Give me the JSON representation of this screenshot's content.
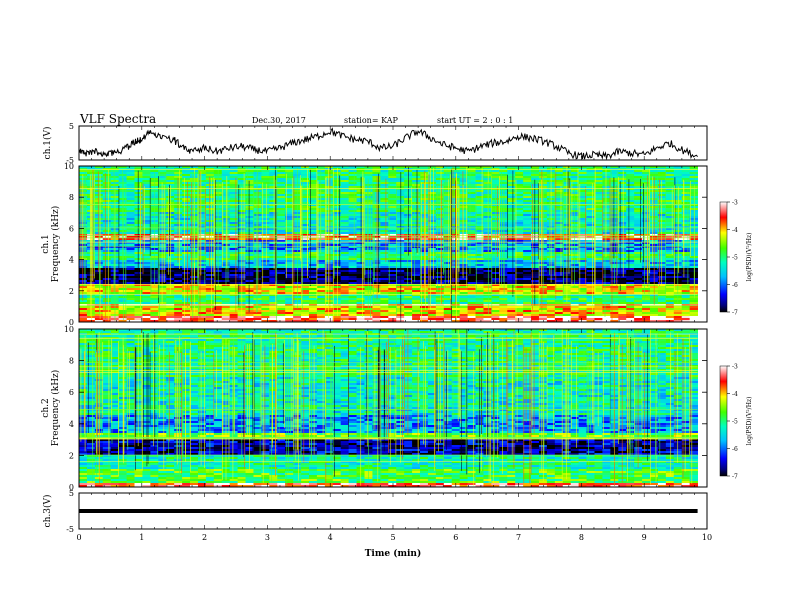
{
  "header": {
    "title": "VLF Spectra",
    "date": "Dec.30, 2017",
    "station": "station= KAP",
    "start_ut": "start  UT  =   2  : 0   : 1"
  },
  "chart_data": [
    {
      "type": "line",
      "panel": "ch1-waveform",
      "ylabel": "ch.1(V)",
      "ylim": [
        -5,
        5
      ],
      "yticks": [
        5,
        -5
      ],
      "xlim": [
        0,
        10
      ],
      "x_extent_min": 9.85,
      "series": [
        {
          "x": [
            0,
            0.1,
            0.25,
            0.4,
            0.55,
            0.75,
            0.9,
            1.0,
            1.15,
            1.3,
            1.5,
            1.65,
            1.8,
            2.0,
            2.2,
            2.4,
            2.6,
            2.8,
            3.0,
            3.2,
            3.4,
            3.6,
            3.8,
            4.0,
            4.2,
            4.4,
            4.6,
            4.8,
            5.0,
            5.2,
            5.4,
            5.6,
            5.8,
            6.0,
            6.2,
            6.4,
            6.6,
            6.8,
            7.0,
            7.2,
            7.4,
            7.6,
            7.8,
            8.0,
            8.2,
            8.4,
            8.6,
            8.8,
            9.0,
            9.2,
            9.4,
            9.6,
            9.85
          ],
          "values": [
            -2,
            -3.5,
            -2.5,
            -3.8,
            -3,
            -1.5,
            0.5,
            1,
            3.5,
            2,
            1,
            -1,
            -2.5,
            -1.5,
            -2.5,
            -1.5,
            -1,
            -2,
            -2.5,
            -1.5,
            0,
            1,
            2,
            3.5,
            2,
            1,
            0.5,
            -1.5,
            -1,
            1.5,
            3.5,
            1.5,
            -0.5,
            -1.5,
            -2.5,
            -1,
            0,
            0.5,
            2,
            1.5,
            0.5,
            -1,
            -3,
            -4,
            -3.5,
            -4,
            -2.5,
            -3,
            -3.5,
            -1.5,
            0,
            -2,
            -4
          ]
        }
      ]
    },
    {
      "type": "heatmap",
      "panel": "ch1-spectrogram",
      "ylabel": "ch.1",
      "ylabel2": "Frequency (kHz)",
      "xlim": [
        0,
        10
      ],
      "ylim": [
        0,
        10
      ],
      "yticks": [
        0,
        2,
        4,
        6,
        8,
        10
      ],
      "colorbar": {
        "label": "log(PSD)(V²/Hz)",
        "range": [
          -7,
          -3
        ],
        "ticks": [
          -3,
          -4,
          -5,
          -6,
          -7
        ]
      },
      "bands": [
        {
          "from": 0,
          "to": 0.4,
          "level": 0.92
        },
        {
          "from": 0.4,
          "to": 1.0,
          "level": 0.72
        },
        {
          "from": 1.0,
          "to": 1.2,
          "level": 0.95
        },
        {
          "from": 1.2,
          "to": 1.8,
          "level": 0.5
        },
        {
          "from": 1.8,
          "to": 2.5,
          "level": 0.7
        },
        {
          "from": 2.5,
          "to": 3.4,
          "level": 0.05
        },
        {
          "from": 3.4,
          "to": 4.0,
          "level": 0.35
        },
        {
          "from": 4.0,
          "to": 4.5,
          "level": 0.5
        },
        {
          "from": 4.5,
          "to": 5.2,
          "level": 0.3
        },
        {
          "from": 5.2,
          "to": 5.7,
          "level": 0.9
        },
        {
          "from": 5.7,
          "to": 7.0,
          "level": 0.42
        },
        {
          "from": 7.0,
          "to": 10,
          "level": 0.5
        }
      ]
    },
    {
      "type": "heatmap",
      "panel": "ch2-spectrogram",
      "ylabel": "ch.2",
      "ylabel2": "Frequency (kHz)",
      "xlim": [
        0,
        10
      ],
      "ylim": [
        0,
        10
      ],
      "yticks": [
        0,
        2,
        4,
        6,
        8,
        10
      ],
      "colorbar": {
        "label": "log(PSD)(V²/Hz)",
        "range": [
          -7,
          -3
        ],
        "ticks": [
          -3,
          -4,
          -5,
          -6,
          -7
        ]
      },
      "bands": [
        {
          "from": 0,
          "to": 0.3,
          "level": 0.9
        },
        {
          "from": 0.3,
          "to": 1.2,
          "level": 0.55
        },
        {
          "from": 1.2,
          "to": 2.0,
          "level": 0.45
        },
        {
          "from": 2.0,
          "to": 3.1,
          "level": 0.1
        },
        {
          "from": 3.1,
          "to": 3.4,
          "level": 0.6
        },
        {
          "from": 3.4,
          "to": 4.6,
          "level": 0.3
        },
        {
          "from": 4.6,
          "to": 7.0,
          "level": 0.42
        },
        {
          "from": 7.0,
          "to": 10,
          "level": 0.48
        }
      ]
    },
    {
      "type": "line",
      "panel": "ch3-waveform",
      "ylabel": "ch.3(V)",
      "ylim": [
        -5,
        5
      ],
      "yticks": [
        5,
        -5
      ],
      "xlim": [
        0,
        10
      ],
      "xlabel": "Time  (min)",
      "xticks": [
        0,
        1,
        2,
        3,
        4,
        5,
        6,
        7,
        8,
        9,
        10
      ],
      "series": [
        {
          "x": [
            0,
            9.85
          ],
          "values": [
            0,
            0
          ]
        }
      ]
    }
  ]
}
